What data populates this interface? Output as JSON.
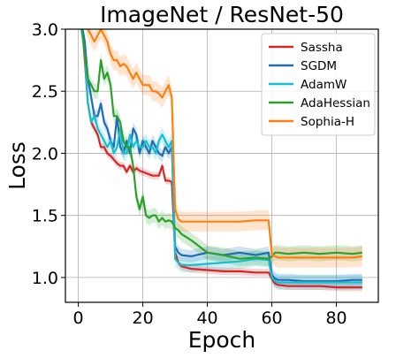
{
  "chart_data": {
    "type": "line",
    "title": "ImageNet / ResNet-50",
    "xlabel": "Epoch",
    "ylabel": "Loss",
    "xlim": [
      -4,
      93
    ],
    "ylim": [
      0.8,
      3.0
    ],
    "x_ticks": [
      0,
      20,
      40,
      60,
      80
    ],
    "y_ticks": [
      1.0,
      1.5,
      2.0,
      2.5,
      3.0
    ],
    "y_tick_labels": [
      "1.0",
      "1.5",
      "2.0",
      "2.5",
      "3.0"
    ],
    "grid": true,
    "legend_position": "top-right",
    "series": [
      {
        "name": "Sassha",
        "color": "#d62728",
        "x": [
          0,
          1,
          2,
          3,
          4,
          5,
          6,
          7,
          8,
          9,
          10,
          11,
          12,
          13,
          14,
          15,
          16,
          17,
          18,
          19,
          20,
          21,
          22,
          23,
          24,
          25,
          26,
          27,
          28,
          29,
          30,
          31,
          32,
          35,
          40,
          45,
          50,
          55,
          59,
          60,
          61,
          62,
          65,
          70,
          75,
          80,
          85,
          88
        ],
        "y": [
          3.2,
          3.1,
          2.75,
          2.4,
          2.25,
          2.2,
          2.15,
          2.05,
          2.05,
          2.0,
          1.98,
          1.95,
          1.92,
          1.9,
          1.9,
          1.85,
          1.9,
          1.85,
          1.88,
          1.86,
          1.85,
          1.84,
          1.83,
          1.82,
          1.82,
          1.82,
          1.9,
          1.78,
          1.78,
          1.77,
          1.2,
          1.12,
          1.09,
          1.07,
          1.06,
          1.05,
          1.05,
          1.04,
          1.04,
          0.99,
          0.95,
          0.94,
          0.93,
          0.93,
          0.93,
          0.92,
          0.92,
          0.92
        ],
        "band": 0.03
      },
      {
        "name": "SGDM",
        "color": "#1f6db5",
        "x": [
          0,
          1,
          2,
          3,
          4,
          5,
          6,
          7,
          8,
          9,
          10,
          11,
          12,
          13,
          14,
          15,
          16,
          17,
          18,
          19,
          20,
          21,
          22,
          23,
          24,
          25,
          26,
          27,
          28,
          29,
          30,
          31,
          32,
          35,
          40,
          45,
          50,
          55,
          59,
          60,
          61,
          62,
          65,
          70,
          75,
          80,
          85,
          88
        ],
        "y": [
          3.2,
          3.05,
          2.9,
          2.6,
          2.45,
          2.3,
          2.3,
          2.4,
          2.25,
          2.2,
          2.1,
          2.05,
          2.3,
          2.05,
          2.0,
          2.1,
          2.0,
          2.2,
          2.15,
          2.0,
          2.1,
          2.05,
          2.0,
          2.1,
          2.05,
          2.0,
          1.98,
          2.05,
          2.0,
          2.05,
          1.25,
          1.2,
          1.18,
          1.17,
          1.2,
          1.18,
          1.2,
          1.18,
          1.2,
          1.02,
          0.99,
          0.98,
          0.98,
          0.97,
          0.97,
          0.97,
          0.98,
          0.98
        ],
        "band": 0.05
      },
      {
        "name": "AdamW",
        "color": "#17becf",
        "x": [
          0,
          1,
          2,
          3,
          4,
          5,
          6,
          7,
          8,
          9,
          10,
          11,
          12,
          13,
          14,
          15,
          16,
          17,
          18,
          19,
          20,
          21,
          22,
          23,
          24,
          25,
          26,
          27,
          28,
          29,
          30,
          31,
          32,
          35,
          40,
          45,
          50,
          55,
          59,
          60,
          61,
          62,
          65,
          70,
          75,
          80,
          85,
          88
        ],
        "y": [
          3.2,
          3.0,
          2.8,
          2.4,
          2.25,
          2.3,
          2.2,
          2.15,
          2.1,
          2.05,
          2.1,
          2.0,
          2.05,
          2.2,
          2.0,
          2.0,
          2.15,
          2.05,
          2.1,
          2.05,
          2.05,
          2.1,
          2.05,
          2.05,
          2.0,
          2.1,
          2.15,
          2.1,
          2.05,
          2.1,
          1.15,
          1.12,
          1.1,
          1.1,
          1.11,
          1.12,
          1.13,
          1.15,
          1.14,
          1.0,
          0.97,
          0.96,
          0.96,
          0.96,
          0.96,
          0.96,
          0.96,
          0.96
        ],
        "band": 0.06
      },
      {
        "name": "AdaHessian",
        "color": "#2ca02c",
        "x": [
          0,
          1,
          2,
          3,
          4,
          5,
          6,
          7,
          8,
          9,
          10,
          11,
          12,
          13,
          14,
          15,
          16,
          17,
          18,
          19,
          20,
          21,
          22,
          23,
          24,
          25,
          26,
          27,
          28,
          29,
          30,
          31,
          32,
          35,
          40,
          45,
          50,
          55,
          59,
          60,
          61,
          62,
          65,
          70,
          75,
          80,
          85,
          88
        ],
        "y": [
          3.2,
          3.05,
          2.8,
          2.6,
          2.55,
          2.5,
          2.5,
          2.75,
          2.6,
          2.65,
          2.55,
          2.3,
          2.3,
          2.25,
          2.1,
          2.05,
          2.05,
          1.9,
          1.65,
          1.55,
          1.65,
          1.5,
          1.48,
          1.5,
          1.5,
          1.45,
          1.48,
          1.45,
          1.46,
          1.45,
          1.4,
          1.38,
          1.35,
          1.3,
          1.2,
          1.18,
          1.15,
          1.16,
          1.15,
          1.17,
          1.2,
          1.2,
          1.19,
          1.2,
          1.19,
          1.2,
          1.19,
          1.2
        ],
        "band": 0.06
      },
      {
        "name": "Sophia-H",
        "color": "#ff7f0e",
        "x": [
          0,
          1,
          2,
          3,
          4,
          5,
          6,
          7,
          8,
          9,
          10,
          11,
          12,
          13,
          14,
          15,
          16,
          17,
          18,
          19,
          20,
          21,
          22,
          23,
          24,
          25,
          26,
          27,
          28,
          29,
          30,
          31,
          32,
          35,
          40,
          45,
          50,
          55,
          59,
          60,
          61,
          62,
          65,
          70,
          75,
          80,
          85,
          88
        ],
        "y": [
          3.3,
          3.2,
          3.1,
          3.0,
          2.95,
          2.9,
          2.95,
          3.0,
          2.95,
          2.9,
          2.8,
          2.75,
          2.75,
          2.7,
          2.72,
          2.7,
          2.65,
          2.6,
          2.65,
          2.6,
          2.55,
          2.55,
          2.55,
          2.5,
          2.5,
          2.48,
          2.45,
          2.5,
          2.55,
          2.45,
          1.55,
          1.47,
          1.45,
          1.45,
          1.45,
          1.45,
          1.45,
          1.46,
          1.46,
          1.18,
          1.17,
          1.16,
          1.16,
          1.16,
          1.16,
          1.16,
          1.16,
          1.17
        ],
        "band": 0.08
      }
    ]
  }
}
